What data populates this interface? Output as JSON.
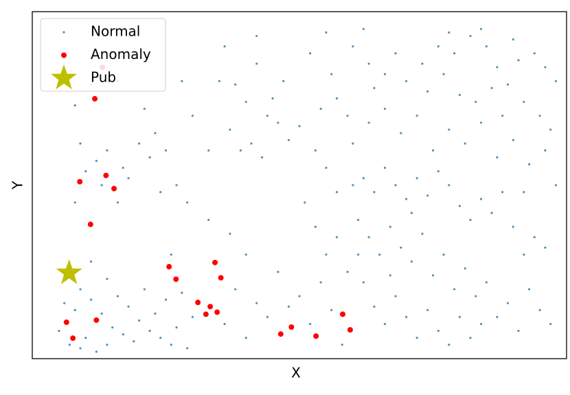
{
  "chart_data": {
    "type": "scatter",
    "xlabel": "X",
    "ylabel": "Y",
    "xlim": [
      0,
      100
    ],
    "ylim": [
      0,
      100
    ],
    "legend": "upper left",
    "series": [
      {
        "name": "Normal",
        "color": "#1f77b4",
        "marker": "dot",
        "x": [
          5,
          7,
          9,
          10,
          12,
          14,
          8,
          11,
          13,
          15,
          17,
          19,
          20,
          22,
          24,
          23,
          26,
          27,
          18,
          16,
          9,
          6,
          25,
          28,
          21,
          29,
          30,
          14,
          11,
          26,
          8,
          10,
          12,
          14,
          16,
          18,
          9,
          13,
          20,
          22,
          17,
          24,
          27,
          29,
          23,
          25,
          8,
          11,
          16,
          21,
          28,
          30,
          35,
          38,
          40,
          42,
          44,
          46,
          41,
          37,
          39,
          43,
          45,
          47,
          33,
          48,
          50,
          36,
          42,
          52,
          55,
          60,
          62,
          57,
          59,
          63,
          64,
          56,
          54,
          53,
          33,
          37,
          40,
          38,
          42,
          44,
          36,
          40,
          48,
          46,
          50,
          52,
          54,
          56,
          58,
          55,
          53,
          51,
          57,
          55,
          60,
          62,
          64,
          66,
          68,
          70,
          72,
          74,
          76,
          78,
          80,
          82,
          84,
          86,
          88,
          90,
          92,
          94,
          96,
          61,
          63,
          65,
          67,
          69,
          71,
          73,
          75,
          77,
          79,
          81,
          83,
          85,
          87,
          89,
          91,
          93,
          95,
          97,
          62,
          64,
          66,
          68,
          70,
          72,
          74,
          76,
          78,
          80,
          82,
          84,
          60,
          63,
          66,
          69,
          72,
          75,
          78,
          81,
          84,
          87,
          90,
          93,
          96,
          98,
          92,
          61,
          59,
          57,
          67,
          71,
          70,
          73,
          76,
          79,
          82,
          85,
          87,
          89,
          91,
          94,
          96,
          98,
          80,
          83,
          86,
          88,
          92,
          95,
          97,
          74,
          77,
          68,
          66,
          78,
          84,
          90
        ],
        "values": [
          8,
          4,
          3,
          6,
          2,
          4,
          14,
          17,
          13,
          9,
          7,
          5,
          11,
          8,
          6,
          13,
          4,
          9,
          15,
          18,
          20,
          16,
          17,
          19,
          20,
          3,
          12,
          23,
          28,
          30,
          45,
          54,
          57,
          60,
          45,
          52,
          62,
          50,
          62,
          58,
          55,
          48,
          50,
          45,
          65,
          60,
          73,
          79,
          80,
          72,
          80,
          70,
          80,
          79,
          74,
          85,
          70,
          68,
          62,
          66,
          60,
          58,
          75,
          80,
          60,
          63,
          67,
          90,
          93,
          88,
          94,
          90,
          95,
          75,
          70,
          85,
          78,
          82,
          72,
          60,
          40,
          36,
          30,
          20,
          16,
          12,
          10,
          6,
          15,
          25,
          18,
          10,
          22,
          14,
          4,
          30,
          38,
          45,
          48,
          55,
          50,
          52,
          48,
          55,
          50,
          46,
          52,
          47,
          54,
          50,
          44,
          40,
          46,
          42,
          48,
          38,
          30,
          35,
          32,
          40,
          35,
          30,
          38,
          32,
          28,
          36,
          24,
          30,
          20,
          26,
          18,
          22,
          12,
          16,
          8,
          20,
          14,
          10,
          22,
          15,
          10,
          18,
          12,
          6,
          14,
          8,
          4,
          12,
          6,
          10,
          62,
          68,
          72,
          65,
          70,
          60,
          66,
          62,
          68,
          58,
          63,
          56,
          60,
          50,
          48,
          30,
          25,
          35,
          24,
          42,
          80,
          85,
          90,
          88,
          93,
          90,
          84,
          79,
          86,
          88,
          84,
          80,
          76,
          74,
          78,
          70,
          74,
          70,
          66,
          77,
          82,
          88,
          82,
          94,
          95,
          92
        ]
      },
      {
        "name": "Anomaly",
        "color": "#ff0000",
        "marker": "dot",
        "x": [
          13.1,
          11.7,
          8.9,
          13.8,
          15.3,
          10.9,
          25.6,
          26.9,
          34.2,
          35.3,
          31.0,
          33.3,
          32.5,
          34.6,
          6.4,
          12.0,
          7.6,
          46.5,
          48.5,
          53.1,
          58.1,
          59.5
        ],
        "values": [
          84.0,
          74.9,
          51.0,
          52.8,
          49.0,
          38.7,
          26.5,
          22.9,
          27.7,
          23.3,
          16.2,
          15.0,
          12.8,
          13.4,
          10.5,
          11.1,
          5.9,
          7.1,
          9.1,
          6.5,
          12.8,
          8.3
        ]
      },
      {
        "name": "Pub",
        "color": "#bfbf00",
        "marker": "star",
        "x": [
          6.9
        ],
        "values": [
          24.7
        ]
      }
    ]
  }
}
